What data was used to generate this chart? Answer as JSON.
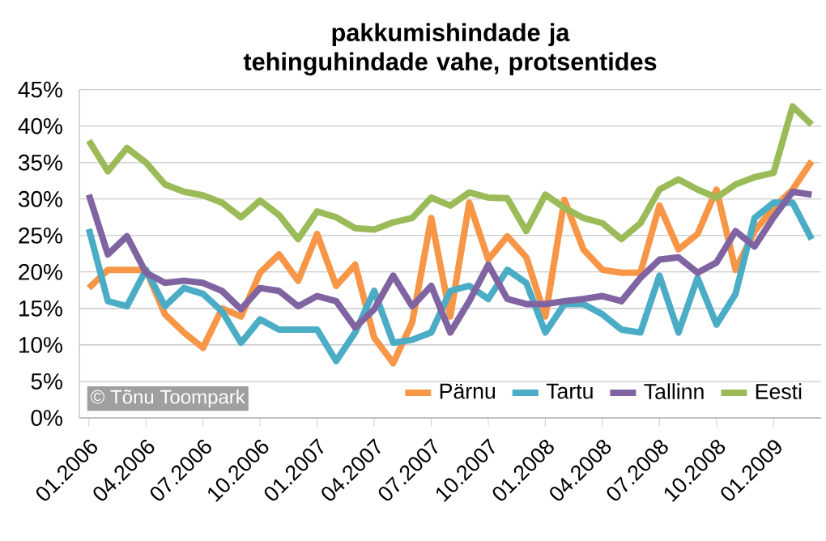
{
  "chart_data": {
    "type": "line",
    "title": "pakkumishindade ja tehinguhindade vahe, protsentides",
    "categories": [
      "01.2006",
      null,
      null,
      "04.2006",
      null,
      null,
      "07.2006",
      null,
      null,
      "10.2006",
      null,
      null,
      "01.2007",
      null,
      null,
      "04.2007",
      null,
      null,
      "07.2007",
      null,
      null,
      "10.2007",
      null,
      null,
      "01.2008",
      null,
      null,
      "04.2008",
      null,
      null,
      "07.2008",
      null,
      null,
      "10.2008",
      null,
      null,
      "01.2009",
      null,
      null
    ],
    "series": [
      {
        "name": "Pärnu",
        "color": "#f79646",
        "values": [
          17.8,
          20.3,
          20.3,
          20.3,
          14.2,
          11.7,
          9.6,
          15,
          13.9,
          19.9,
          22.4,
          18.8,
          25.2,
          18.1,
          21,
          11,
          7.5,
          13.1,
          27.4,
          13.9,
          29.5,
          21.7,
          24.9,
          22,
          13.9,
          29.9,
          23.1,
          20.3,
          19.9,
          19.9,
          29.1,
          23.1,
          25.2,
          31.3,
          20.3,
          25.6,
          28.8,
          31.3,
          35.2
        ]
      },
      {
        "name": "Tartu",
        "color": "#4bacc6",
        "values": [
          25.9,
          16,
          15.3,
          20.3,
          15.3,
          17.8,
          17,
          14.6,
          10.3,
          13.5,
          12.1,
          12.1,
          12.1,
          7.8,
          11.7,
          17.4,
          10.3,
          10.7,
          11.7,
          17.4,
          18.1,
          16.3,
          20.3,
          18.5,
          11.7,
          15.6,
          15.6,
          14.2,
          12.1,
          11.7,
          19.5,
          11.7,
          19.2,
          12.8,
          17,
          27.4,
          29.5,
          29.5,
          24.5
        ]
      },
      {
        "name": "Tallinn",
        "color": "#8064a2",
        "values": [
          30.6,
          22.4,
          24.9,
          19.9,
          18.5,
          18.8,
          18.5,
          17.4,
          14.9,
          17.8,
          17.4,
          15.3,
          16.7,
          16,
          12.4,
          14.9,
          19.5,
          15.3,
          18.1,
          11.7,
          16,
          21,
          16.3,
          15.6,
          15.6,
          16,
          16.3,
          16.7,
          16,
          19.2,
          21.7,
          22,
          19.9,
          21.3,
          25.6,
          23.5,
          27.5,
          31,
          30.6
        ]
      },
      {
        "name": "Eesti",
        "color": "#9bbb59",
        "values": [
          38,
          33.8,
          37,
          35,
          32,
          31,
          30.5,
          29.5,
          27.5,
          29.8,
          27.8,
          24.5,
          28.3,
          27.5,
          26,
          25.8,
          26.8,
          27.4,
          30.2,
          29.1,
          30.9,
          30.2,
          30.1,
          25.6,
          30.6,
          28.8,
          27.4,
          26.7,
          24.5,
          26.7,
          31.3,
          32.7,
          31.3,
          30.2,
          32,
          33,
          33.6,
          42.7,
          40.2
        ]
      }
    ],
    "ylim": [
      0,
      45
    ],
    "yticks": [
      {
        "value": 0,
        "label": "0%"
      },
      {
        "value": 5,
        "label": "5%"
      },
      {
        "value": 10,
        "label": "10%"
      },
      {
        "value": 15,
        "label": "15%"
      },
      {
        "value": 20,
        "label": "20%"
      },
      {
        "value": 25,
        "label": "25%"
      },
      {
        "value": 30,
        "label": "30%"
      },
      {
        "value": 35,
        "label": "35%"
      },
      {
        "value": 40,
        "label": "40%"
      },
      {
        "value": 45,
        "label": "45%"
      }
    ],
    "grid": "y",
    "legend": "bottom right",
    "marker": "none",
    "line_style": "solid",
    "annotations": [
      "© Tõnu Toompark"
    ]
  }
}
